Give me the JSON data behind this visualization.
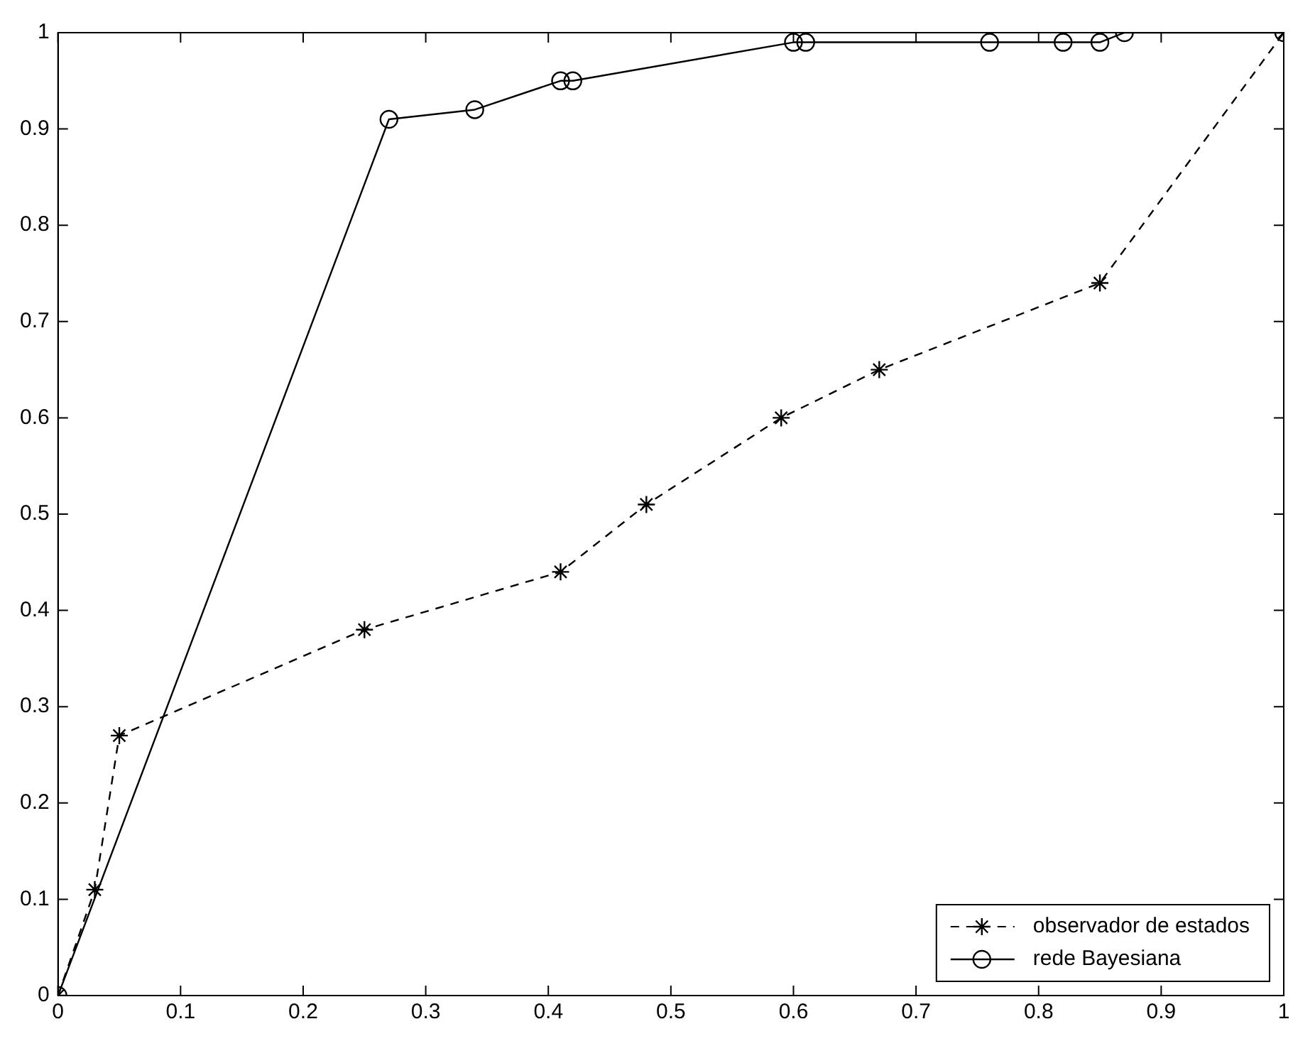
{
  "chart_data": {
    "type": "line",
    "xlim": [
      0,
      1
    ],
    "ylim": [
      0,
      1
    ],
    "xticks": [
      0,
      0.1,
      0.2,
      0.3,
      0.4,
      0.5,
      0.6,
      0.7,
      0.8,
      0.9,
      1
    ],
    "yticks": [
      0,
      0.1,
      0.2,
      0.3,
      0.4,
      0.5,
      0.6,
      0.7,
      0.8,
      0.9,
      1
    ],
    "grid": false,
    "legend": "bottom right",
    "series": [
      {
        "name": "observador de estados",
        "color": "#000000",
        "marker": "cross",
        "line_style": "dashed",
        "x": [
          0,
          0.03,
          0.05,
          0.25,
          0.41,
          0.48,
          0.59,
          0.67,
          0.85,
          1
        ],
        "values": [
          0,
          0.11,
          0.27,
          0.38,
          0.44,
          0.51,
          0.6,
          0.65,
          0.74,
          1
        ]
      },
      {
        "name": "rede Bayesiana",
        "color": "#000000",
        "marker": "circle",
        "line_style": "solid",
        "x": [
          0,
          0.27,
          0.34,
          0.41,
          0.42,
          0.6,
          0.61,
          0.76,
          0.82,
          0.85,
          0.87,
          1
        ],
        "values": [
          0,
          0.91,
          0.92,
          0.95,
          0.95,
          0.99,
          0.99,
          0.99,
          0.99,
          0.99,
          1,
          1
        ]
      }
    ]
  }
}
